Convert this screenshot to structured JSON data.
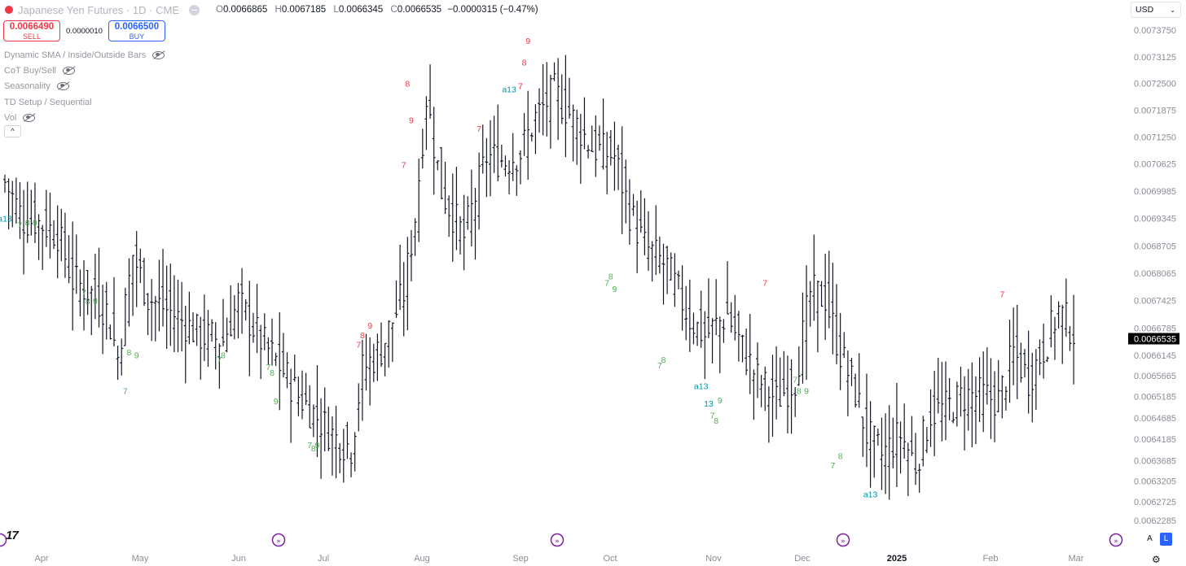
{
  "header": {
    "symbol_title": "Japanese Yen Futures · 1D · CME",
    "ohlc": {
      "open_key": "O",
      "open": "0.0066865",
      "high_key": "H",
      "high": "0.0067185",
      "low_key": "L",
      "low": "0.0066345",
      "close_key": "C",
      "close": "0.0066535",
      "change": "−0.0000315 (−0.47%)"
    }
  },
  "trade": {
    "sell_price": "0.0066490",
    "sell_label": "SELL",
    "spread": "0.0000010",
    "buy_price": "0.0066500",
    "buy_label": "BUY"
  },
  "indicators": [
    {
      "label": "Dynamic SMA / Inside/Outside Bars",
      "icon": "eye-off-icon"
    },
    {
      "label": "CoT Buy/Sell",
      "icon": "eye-off-icon"
    },
    {
      "label": "Seasonality",
      "icon": "eye-off-icon"
    },
    {
      "label": "TD Setup / Sequential",
      "icon": "eye-off-icon"
    },
    {
      "label": "Vol",
      "icon": "eye-off-icon"
    }
  ],
  "legend_toggle": "^",
  "currency": "USD",
  "logo_text": "17",
  "scale_buttons": {
    "auto": "A",
    "log": "L"
  },
  "colors": {
    "bar": "#131722",
    "sell_setup": "#f23645",
    "buy_setup": "#4caf50",
    "countdown": "#0097a7",
    "price_label_bg": "#000000",
    "accent": "#2962ff",
    "event_marker": "#7b1fa2"
  },
  "chart_data": {
    "type": "ohlc",
    "bar_style": "ohlc-bars",
    "timeframe": "1D",
    "y_axis_ticks": [
      "0.0073750",
      "0.0073125",
      "0.0072500",
      "0.0071875",
      "0.0071250",
      "0.0070625",
      "0.0069985",
      "0.0069345",
      "0.0068705",
      "0.0068065",
      "0.0067425",
      "0.0066785",
      "0.0066145",
      "0.0065665",
      "0.0065185",
      "0.0064685",
      "0.0064185",
      "0.0063685",
      "0.0063205",
      "0.0062725",
      "0.0062285"
    ],
    "last_price": "0.0066535",
    "x_axis_ticks": [
      "Apr",
      "May",
      "Jun",
      "Jul",
      "Aug",
      "Sep",
      "Oct",
      "Nov",
      "Dec",
      "2025",
      "Feb",
      "Mar"
    ],
    "major_tick": "2025",
    "ylim": [
      0.0062,
      0.0074
    ],
    "price_path": [
      [
        0,
        0.00702
      ],
      [
        5,
        0.00693
      ],
      [
        8,
        0.00693
      ],
      [
        14,
        0.0069
      ],
      [
        18,
        0.00679
      ],
      [
        23,
        0.00676
      ],
      [
        27,
        0.00672
      ],
      [
        30,
        0.00661
      ],
      [
        34,
        0.00685
      ],
      [
        38,
        0.00675
      ],
      [
        45,
        0.00671
      ],
      [
        52,
        0.00666
      ],
      [
        58,
        0.00665
      ],
      [
        62,
        0.00674
      ],
      [
        68,
        0.00665
      ],
      [
        73,
        0.00659
      ],
      [
        78,
        0.00652
      ],
      [
        84,
        0.00646
      ],
      [
        88,
        0.00642
      ],
      [
        92,
        0.0064
      ],
      [
        95,
        0.00658
      ],
      [
        100,
        0.00663
      ],
      [
        106,
        0.00676
      ],
      [
        109,
        0.00694
      ],
      [
        112,
        0.00722
      ],
      [
        116,
        0.007
      ],
      [
        122,
        0.00689
      ],
      [
        128,
        0.00708
      ],
      [
        133,
        0.00707
      ],
      [
        137,
        0.00709
      ],
      [
        141,
        0.00717
      ],
      [
        146,
        0.00723
      ],
      [
        150,
        0.00718
      ],
      [
        156,
        0.0071
      ],
      [
        162,
        0.00708
      ],
      [
        166,
        0.00695
      ],
      [
        170,
        0.00687
      ],
      [
        176,
        0.00682
      ],
      [
        182,
        0.0067
      ],
      [
        186,
        0.00666
      ],
      [
        192,
        0.00671
      ],
      [
        196,
        0.00663
      ],
      [
        200,
        0.00656
      ],
      [
        205,
        0.00651
      ],
      [
        210,
        0.00656
      ],
      [
        214,
        0.00676
      ],
      [
        218,
        0.00675
      ],
      [
        222,
        0.00662
      ],
      [
        226,
        0.00653
      ],
      [
        229,
        0.00643
      ],
      [
        233,
        0.00638
      ],
      [
        238,
        0.00643
      ],
      [
        242,
        0.00636
      ],
      [
        246,
        0.00648
      ],
      [
        250,
        0.00649
      ],
      [
        255,
        0.00652
      ],
      [
        260,
        0.00652
      ],
      [
        264,
        0.00651
      ],
      [
        268,
        0.00662
      ],
      [
        272,
        0.00656
      ],
      [
        276,
        0.00663
      ],
      [
        280,
        0.00672
      ],
      [
        284,
        0.00667
      ]
    ],
    "td_labels": [
      {
        "text": "a13",
        "type": "countdown",
        "bar": 0,
        "price": 0.006935
      },
      {
        "text": "7",
        "type": "buy",
        "bar": 4,
        "price": 0.00692
      },
      {
        "text": "8",
        "type": "buy",
        "bar": 6,
        "price": 0.006925
      },
      {
        "text": "9",
        "type": "buy",
        "bar": 8,
        "price": 0.006925
      },
      {
        "text": "7",
        "type": "buy",
        "bar": 21,
        "price": 0.006762
      },
      {
        "text": "8",
        "type": "buy",
        "bar": 22,
        "price": 0.006742
      },
      {
        "text": "9",
        "type": "buy",
        "bar": 24,
        "price": 0.006742
      },
      {
        "text": "8",
        "type": "buy",
        "bar": 33,
        "price": 0.006622
      },
      {
        "text": "9",
        "type": "buy",
        "bar": 35,
        "price": 0.006615
      },
      {
        "text": "7",
        "type": "buy",
        "bar": 32,
        "price": 0.006532
      },
      {
        "text": "7",
        "type": "buy",
        "bar": 57,
        "price": 0.006605
      },
      {
        "text": "8",
        "type": "buy",
        "bar": 58,
        "price": 0.006615
      },
      {
        "text": "7",
        "type": "buy",
        "bar": 70,
        "price": 0.006588
      },
      {
        "text": "8",
        "type": "buy",
        "bar": 71,
        "price": 0.006575
      },
      {
        "text": "9",
        "type": "buy",
        "bar": 72,
        "price": 0.006508
      },
      {
        "text": "7",
        "type": "buy",
        "bar": 81,
        "price": 0.006405
      },
      {
        "text": "8",
        "type": "buy",
        "bar": 82,
        "price": 0.006398
      },
      {
        "text": "9",
        "type": "buy",
        "bar": 83,
        "price": 0.006405
      },
      {
        "text": "7",
        "type": "sell",
        "bar": 94,
        "price": 0.00664
      },
      {
        "text": "8",
        "type": "sell",
        "bar": 95,
        "price": 0.006662
      },
      {
        "text": "9",
        "type": "sell",
        "bar": 97,
        "price": 0.006685
      },
      {
        "text": "7",
        "type": "sell",
        "bar": 106,
        "price": 0.00706
      },
      {
        "text": "8",
        "type": "sell",
        "bar": 107,
        "price": 0.00725
      },
      {
        "text": "9",
        "type": "sell",
        "bar": 108,
        "price": 0.007165
      },
      {
        "text": "7",
        "type": "sell",
        "bar": 126,
        "price": 0.007145
      },
      {
        "text": "a13",
        "type": "countdown",
        "bar": 134,
        "price": 0.007237
      },
      {
        "text": "7",
        "type": "sell",
        "bar": 137,
        "price": 0.007245
      },
      {
        "text": "8",
        "type": "sell",
        "bar": 138,
        "price": 0.0073
      },
      {
        "text": "9",
        "type": "sell",
        "bar": 139,
        "price": 0.00735
      },
      {
        "text": "7",
        "type": "buy",
        "bar": 160,
        "price": 0.006785
      },
      {
        "text": "8",
        "type": "buy",
        "bar": 161,
        "price": 0.0068
      },
      {
        "text": "9",
        "type": "buy",
        "bar": 162,
        "price": 0.00677
      },
      {
        "text": "7",
        "type": "buy",
        "bar": 174,
        "price": 0.006592
      },
      {
        "text": "8",
        "type": "buy",
        "bar": 175,
        "price": 0.006605
      },
      {
        "text": "a13",
        "type": "countdown",
        "bar": 185,
        "price": 0.006543
      },
      {
        "text": "13",
        "type": "countdown",
        "bar": 187,
        "price": 0.006502
      },
      {
        "text": "9",
        "type": "buy",
        "bar": 190,
        "price": 0.00651
      },
      {
        "text": "7",
        "type": "buy",
        "bar": 188,
        "price": 0.006475
      },
      {
        "text": "8",
        "type": "buy",
        "bar": 189,
        "price": 0.006462
      },
      {
        "text": "7",
        "type": "sell",
        "bar": 202,
        "price": 0.006785
      },
      {
        "text": "7",
        "type": "buy",
        "bar": 210,
        "price": 0.006558
      },
      {
        "text": "8",
        "type": "buy",
        "bar": 211,
        "price": 0.006532
      },
      {
        "text": "9",
        "type": "buy",
        "bar": 213,
        "price": 0.006532
      },
      {
        "text": "8",
        "type": "buy",
        "bar": 222,
        "price": 0.00638
      },
      {
        "text": "7",
        "type": "buy",
        "bar": 220,
        "price": 0.006358
      },
      {
        "text": "a13",
        "type": "countdown",
        "bar": 230,
        "price": 0.00629
      },
      {
        "text": "7",
        "type": "sell",
        "bar": 265,
        "price": 0.006758
      }
    ],
    "event_markers": [
      "dividend-marker",
      "dividend-marker",
      "dividend-marker",
      "dividend-marker",
      "dividend-marker"
    ]
  }
}
